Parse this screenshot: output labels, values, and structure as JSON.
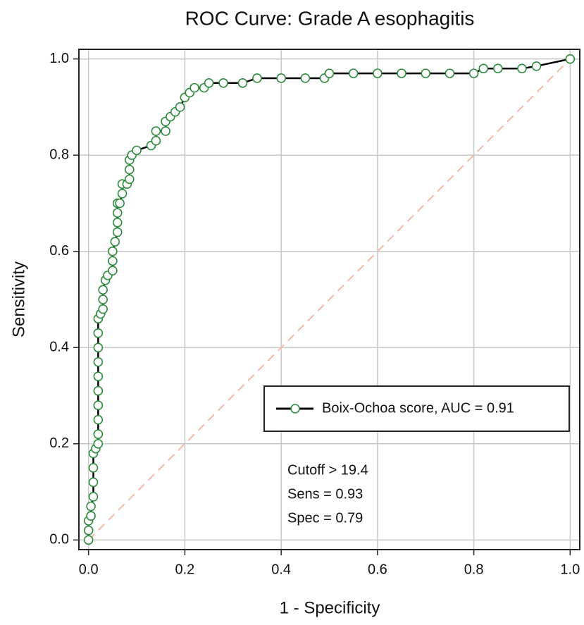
{
  "chart_data": {
    "type": "line",
    "title": "ROC Curve: Grade A esophagitis",
    "xlabel": "1 - Specificity",
    "ylabel": "Sensitivity",
    "xlim": [
      -0.02,
      1.02
    ],
    "ylim": [
      -0.02,
      1.02
    ],
    "xticks": [
      {
        "value": 0,
        "label": "0.0"
      },
      0.2,
      0.4,
      0.6,
      0.8,
      {
        "value": 1,
        "label": "1.0"
      }
    ],
    "yticks": [
      {
        "value": 0,
        "label": "0.0"
      },
      0.2,
      0.4,
      0.6,
      0.8,
      {
        "value": 1,
        "label": "1.0"
      }
    ],
    "grid": true,
    "legend_position": "right",
    "reference_line": {
      "x": [
        0,
        1
      ],
      "y": [
        0,
        1
      ],
      "color": "#f5b9a9"
    },
    "series": [
      {
        "name": "Boix-Ochoa score, AUC = 0.91",
        "color": "#2e8b3e",
        "line_color": "#000000",
        "x": [
          0,
          0,
          0,
          0.005,
          0.005,
          0.01,
          0.01,
          0.01,
          0.01,
          0.015,
          0.02,
          0.02,
          0.02,
          0.02,
          0.02,
          0.02,
          0.02,
          0.02,
          0.02,
          0.02,
          0.025,
          0.03,
          0.03,
          0.03,
          0.035,
          0.04,
          0.05,
          0.05,
          0.05,
          0.055,
          0.06,
          0.06,
          0.06,
          0.06,
          0.065,
          0.07,
          0.07,
          0.08,
          0.085,
          0.085,
          0.085,
          0.09,
          0.1,
          0.13,
          0.14,
          0.14,
          0.16,
          0.16,
          0.17,
          0.18,
          0.19,
          0.2,
          0.21,
          0.22,
          0.24,
          0.25,
          0.28,
          0.32,
          0.35,
          0.4,
          0.45,
          0.49,
          0.5,
          0.55,
          0.6,
          0.65,
          0.7,
          0.75,
          0.8,
          0.82,
          0.85,
          0.9,
          0.93,
          1
        ],
        "values": [
          0,
          0.02,
          0.04,
          0.05,
          0.07,
          0.09,
          0.12,
          0.15,
          0.18,
          0.19,
          0.2,
          0.22,
          0.25,
          0.28,
          0.31,
          0.34,
          0.37,
          0.4,
          0.43,
          0.46,
          0.47,
          0.48,
          0.5,
          0.52,
          0.54,
          0.55,
          0.56,
          0.58,
          0.6,
          0.62,
          0.64,
          0.66,
          0.68,
          0.7,
          0.7,
          0.72,
          0.74,
          0.74,
          0.75,
          0.77,
          0.79,
          0.8,
          0.81,
          0.82,
          0.83,
          0.85,
          0.85,
          0.87,
          0.88,
          0.89,
          0.9,
          0.92,
          0.93,
          0.94,
          0.94,
          0.95,
          0.95,
          0.95,
          0.96,
          0.96,
          0.96,
          0.96,
          0.97,
          0.97,
          0.97,
          0.97,
          0.97,
          0.97,
          0.97,
          0.98,
          0.98,
          0.98,
          0.985,
          1
        ]
      }
    ],
    "annotations": [
      "Cutoff > 19.4",
      "Sens = 0.93",
      "Spec = 0.79"
    ]
  }
}
